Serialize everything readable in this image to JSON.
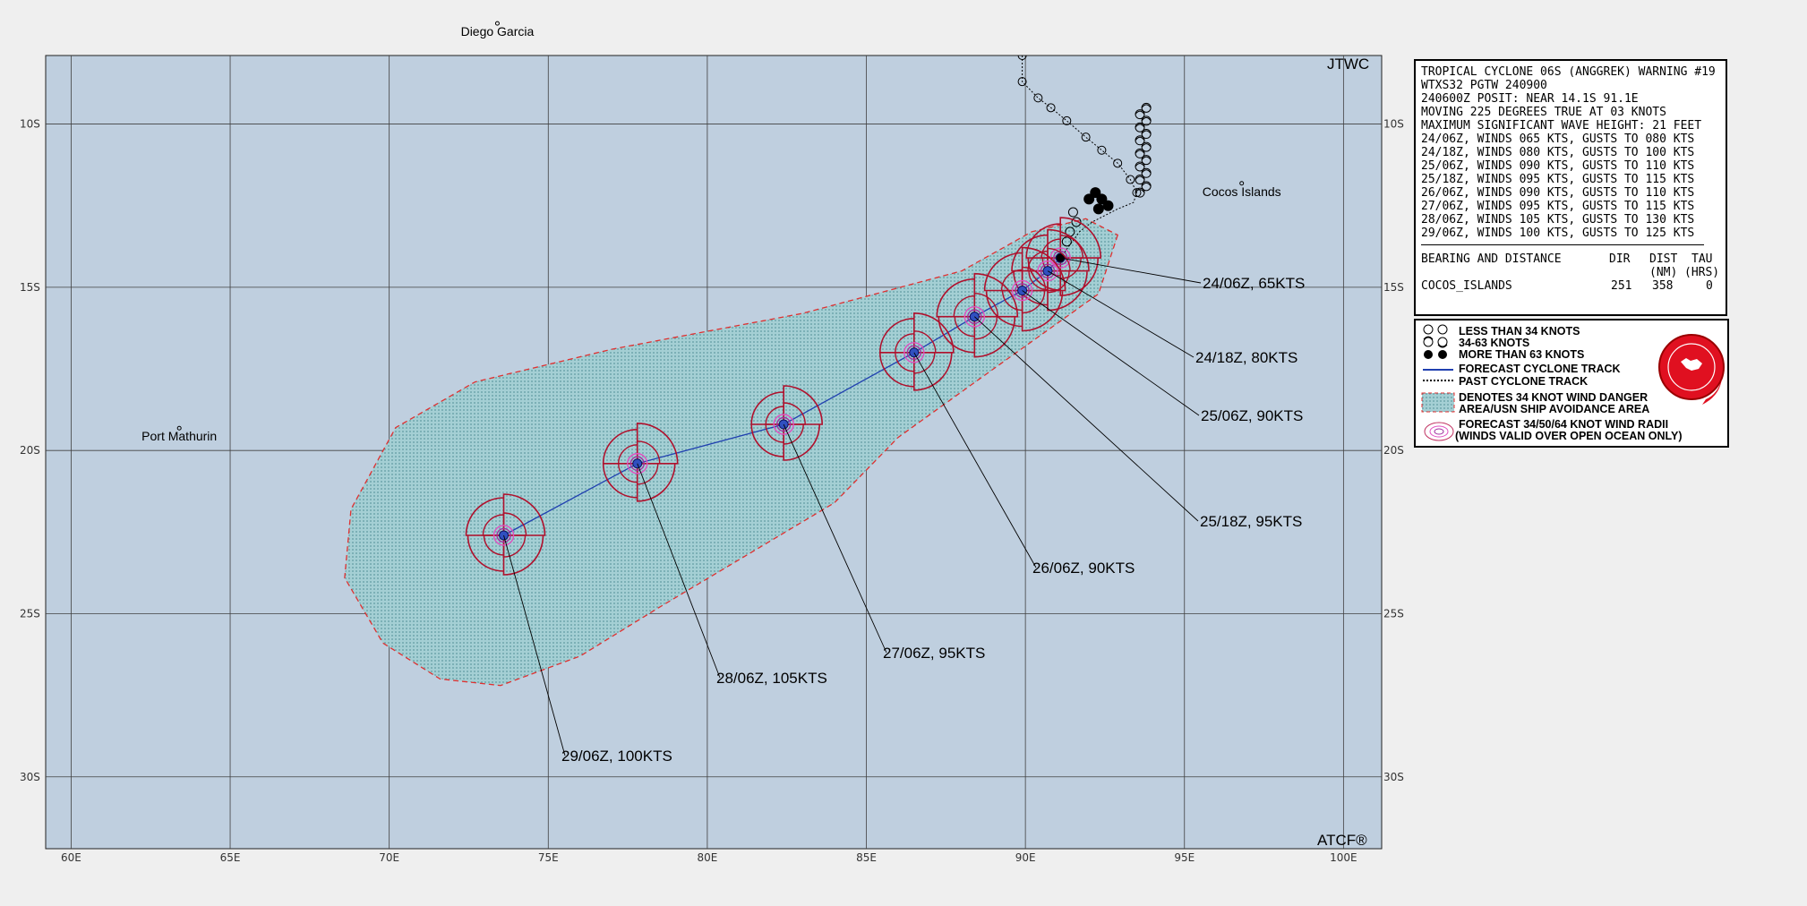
{
  "map": {
    "credit_top": "JTWC",
    "credit_bottom": "ATCF®",
    "lon_labels": [
      "60E",
      "65E",
      "70E",
      "75E",
      "80E",
      "85E",
      "90E",
      "95E",
      "100E"
    ],
    "lat_labels": [
      "10S",
      "15S",
      "20S",
      "25S",
      "30S"
    ],
    "places": [
      {
        "name": "Diego Garcia",
        "lon": 73.4,
        "lat": -7.3
      },
      {
        "name": "Port Mathurin",
        "lon": 63.4,
        "lat": -19.7
      },
      {
        "name": "Cocos Islands",
        "lon": 96.8,
        "lat": -12.2
      }
    ],
    "colors": {
      "ocean": "#bfcfdf",
      "danger": "#a4cfd4",
      "grid": "#404040",
      "radii": "#b0102c",
      "track": "#2040b0",
      "label_line": "#000000"
    }
  },
  "forecast": [
    {
      "label": "24/06Z,  65KTS",
      "lon": 91.1,
      "lat": -14.1,
      "kt": 65
    },
    {
      "label": "24/18Z,  80KTS",
      "lon": 90.7,
      "lat": -14.5,
      "kt": 80
    },
    {
      "label": "25/06Z,  90KTS",
      "lon": 89.9,
      "lat": -15.1,
      "kt": 90
    },
    {
      "label": "25/18Z,  95KTS",
      "lon": 88.4,
      "lat": -15.9,
      "kt": 95
    },
    {
      "label": "26/06Z,  90KTS",
      "lon": 86.5,
      "lat": -17.0,
      "kt": 90
    },
    {
      "label": "27/06Z,  95KTS",
      "lon": 82.4,
      "lat": -19.2,
      "kt": 95
    },
    {
      "label": "28/06Z, 105KTS",
      "lon": 77.8,
      "lat": -20.4,
      "kt": 105
    },
    {
      "label": "29/06Z, 100KTS",
      "lon": 73.6,
      "lat": -22.6,
      "kt": 100
    }
  ],
  "warning": {
    "lines": [
      "TROPICAL CYCLONE 06S (ANGGREK) WARNING #19",
      "WTXS32 PGTW 240900",
      "240600Z POSIT: NEAR 14.1S 91.1E",
      "MOVING 225 DEGREES TRUE AT 03 KNOTS",
      "MAXIMUM SIGNIFICANT WAVE HEIGHT: 21 FEET",
      "24/06Z, WINDS 065 KTS, GUSTS TO 080 KTS",
      "24/18Z, WINDS 080 KTS, GUSTS TO 100 KTS",
      "25/06Z, WINDS 090 KTS, GUSTS TO 110 KTS",
      "25/18Z, WINDS 095 KTS, GUSTS TO 115 KTS",
      "26/06Z, WINDS 090 KTS, GUSTS TO 110 KTS",
      "27/06Z, WINDS 095 KTS, GUSTS TO 115 KTS",
      "28/06Z, WINDS 105 KTS, GUSTS TO 130 KTS",
      "29/06Z, WINDS 100 KTS, GUSTS TO 125 KTS"
    ],
    "bd_header": {
      "title": "BEARING AND DISTANCE",
      "dir": "DIR",
      "dist": "DIST",
      "tau": "TAU"
    },
    "bd_units": {
      "dist": "(NM)",
      "tau": "(HRS)"
    },
    "bd_row": {
      "name": "COCOS_ISLANDS",
      "dir": "251",
      "dist": "358",
      "tau": "0"
    }
  },
  "legend": {
    "items": [
      "LESS THAN 34 KNOTS",
      "34-63 KNOTS",
      "MORE THAN 63 KNOTS",
      "FORECAST CYCLONE TRACK",
      "PAST CYCLONE TRACK",
      "DENOTES 34 KNOT WIND DANGER",
      "AREA/USN SHIP AVOIDANCE AREA",
      "FORECAST 34/50/64 KNOT WIND RADII",
      "(WINDS VALID OVER OPEN OCEAN ONLY)"
    ],
    "seal_color": "#e01020"
  }
}
